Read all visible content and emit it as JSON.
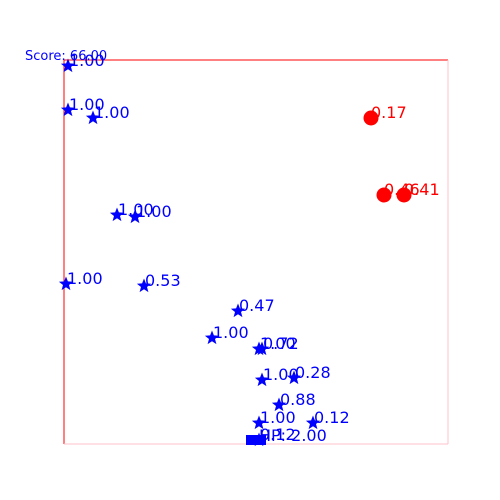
{
  "hud": {
    "score_text": "Score: 66.00",
    "hp_text": "HP: 2.00"
  },
  "colors": {
    "player": "#0000ff",
    "enemy": "#ff0000",
    "border_top_left": "#ff0000",
    "border_bottom_right": "#ffc0cb"
  },
  "player_stars": [
    {
      "label": "1.00",
      "icon": "star-icon"
    },
    {
      "label": "1.00",
      "icon": "star-icon"
    },
    {
      "label": "1.00",
      "icon": "star-icon"
    },
    {
      "label": "1.00",
      "icon": "star-icon"
    },
    {
      "label": "1.00",
      "icon": "star-icon"
    },
    {
      "label": "1.00",
      "icon": "star-icon"
    },
    {
      "label": "0.53",
      "icon": "star-icon"
    },
    {
      "label": "0.47",
      "icon": "star-icon"
    },
    {
      "label": "1.00",
      "icon": "star-icon"
    },
    {
      "label": "1.00",
      "icon": "star-icon"
    },
    {
      "label": "0.72",
      "icon": "star-icon"
    },
    {
      "label": "1.00",
      "icon": "star-icon"
    },
    {
      "label": "0.28",
      "icon": "star-icon"
    },
    {
      "label": "0.88",
      "icon": "star-icon"
    },
    {
      "label": "1.00",
      "icon": "star-icon"
    },
    {
      "label": "0.12",
      "icon": "star-icon"
    },
    {
      "label": "0.12",
      "icon": "star-icon"
    }
  ],
  "enemies": [
    {
      "label": "0.17",
      "icon": "circle-icon"
    },
    {
      "label": "0.46",
      "icon": "circle-icon"
    },
    {
      "label": "0.41",
      "icon": "circle-icon"
    }
  ],
  "player_marker": {
    "icon": "square-icon"
  }
}
